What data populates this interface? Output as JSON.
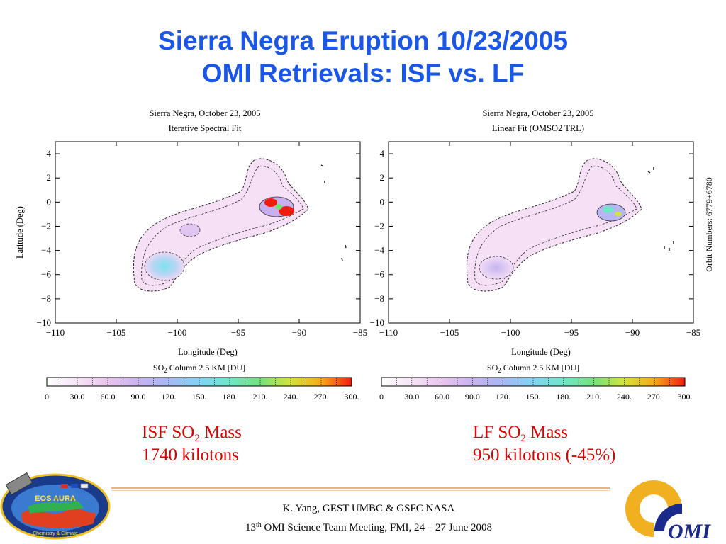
{
  "title_line1": "Sierra Negra Eruption 10/23/2005",
  "title_line2": "OMI Retrievals: ISF vs. LF",
  "colors": {
    "title": "#1a56e8",
    "mass_text": "#e00000",
    "rule": "#f2b07a"
  },
  "chart_data": [
    {
      "type": "heatmap",
      "title": "Sierra Negra, October 23, 2005",
      "subtitle": "Iterative Spectral Fit",
      "xlabel": "Longitude (Deg)",
      "ylabel": "Latitude (Deg)",
      "xlim": [
        -110,
        -85
      ],
      "ylim": [
        -10,
        5
      ],
      "xticks": [
        -110,
        -105,
        -100,
        -95,
        -90,
        -85
      ],
      "yticks": [
        -10,
        -8,
        -6,
        -4,
        -2,
        0,
        2,
        4
      ],
      "grid": false,
      "colorbar": {
        "label_main": "SO",
        "label_sub": "2",
        "label_rest": " Column 2.5 KM [DU]",
        "ticks": [
          "0",
          "30.0",
          "60.0",
          "90.0",
          "120.",
          "150.",
          "180.",
          "210.",
          "240.",
          "270.",
          "300."
        ],
        "range": [
          0,
          300
        ]
      }
    },
    {
      "type": "heatmap",
      "title": "Sierra Negra, October 23, 2005",
      "subtitle": "Linear Fit (OMSO2 TRL)",
      "xlabel": "Longitude (Deg)",
      "ylabel": "",
      "xlim": [
        -110,
        -85
      ],
      "ylim": [
        -10,
        5
      ],
      "xticks": [
        -110,
        -105,
        -100,
        -95,
        -90,
        -85
      ],
      "yticks": [
        -10,
        -8,
        -6,
        -4,
        -2,
        0,
        2,
        4
      ],
      "grid": false,
      "side_label": "Orbit Numbers: 6779+6780",
      "colorbar": {
        "label_main": "SO",
        "label_sub": "2",
        "label_rest": " Column 2.5 KM [DU]",
        "ticks": [
          "0",
          "30.0",
          "60.0",
          "90.0",
          "120.",
          "150.",
          "180.",
          "210.",
          "240.",
          "270.",
          "300."
        ],
        "range": [
          0,
          300
        ]
      }
    }
  ],
  "mass_isf": {
    "label_pre": "ISF SO",
    "label_sub": "2",
    "label_post": " Mass",
    "value": "1740 kilotons"
  },
  "mass_lf": {
    "label_pre": "LF SO",
    "label_sub": "2",
    "label_post": " Mass",
    "value": "950 kilotons (-45%)"
  },
  "footer": {
    "line1": "K. Yang, GEST UMBC  & GSFC NASA",
    "line2_num": "13",
    "line2_sup": "th",
    "line2_rest": " OMI Science Team Meeting, FMI, 24 – 27 June 2008"
  },
  "logo_left": {
    "text": "EOS AURA",
    "bottom_text": "Chemistry & Climate",
    "icon": "eos-aura-logo"
  },
  "logo_right": {
    "text": "OMI",
    "icon": "omi-logo"
  }
}
